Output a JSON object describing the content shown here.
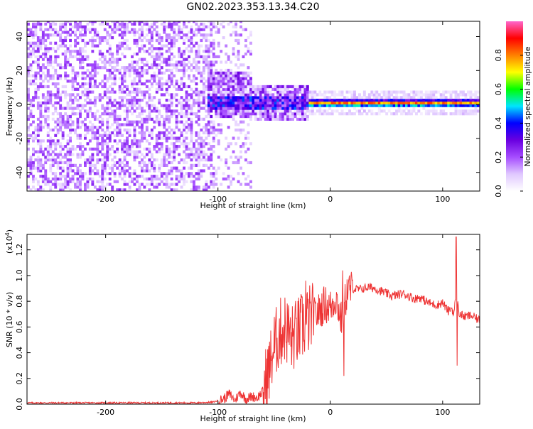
{
  "figure_title": "GN02.2023.353.13.34.C20",
  "chart_data": [
    {
      "type": "heatmap",
      "title": "GN02.2023.353.13.34.C20",
      "xlabel": "Height of straight line (km)",
      "ylabel": "Frequency (Hz)",
      "xlim": [
        -270,
        133
      ],
      "ylim": [
        -51,
        49
      ],
      "x_ticks": [
        -200,
        -100,
        0,
        100
      ],
      "y_ticks": [
        -40,
        -20,
        0,
        20,
        40
      ],
      "x_tick_labels": [
        "-200",
        "-100",
        "0",
        "100"
      ],
      "y_tick_labels": [
        "-40",
        "-20",
        "0",
        "20",
        "40"
      ],
      "colorbar": {
        "label": "Normalized spectral amplitude",
        "range": [
          0,
          1
        ],
        "ticks": [
          0,
          0.2,
          0.4,
          0.6,
          0.8
        ],
        "tick_labels": [
          "0.0",
          "0.2",
          "0.4",
          "0.6",
          "0.8"
        ],
        "colormap": [
          "#ffffff",
          "#e0c8ff",
          "#a64dff",
          "#6a00e0",
          "#0000ff",
          "#00e5ff",
          "#00ff00",
          "#ffff00",
          "#ff8000",
          "#ff0000",
          "#ff66cc"
        ]
      },
      "regions": [
        {
          "x_range": [
            -270,
            -105
          ],
          "description_level": "low noise",
          "amplitude": 0.12
        },
        {
          "x_range": [
            -105,
            -70
          ],
          "description_level": "sparse noise with stripes",
          "amplitude": 0.1
        },
        {
          "x_range": [
            -110,
            -20
          ],
          "description_level": "broadband onset",
          "amplitude": 0.3,
          "freq_halfwidth": 10
        },
        {
          "x_range": [
            -20,
            133
          ],
          "description_level": "narrow band near 0 Hz",
          "amplitude": 0.85,
          "freq_halfwidth": 3
        }
      ]
    },
    {
      "type": "line",
      "xlabel": "Height of straight line (km)",
      "ylabel": "SNR (10 * v/v)",
      "y_scale_label": "(x10",
      "y_scale_exponent": "4",
      "y_scale_close": ")",
      "xlim": [
        -270,
        133
      ],
      "ylim": [
        0,
        1.32
      ],
      "x_ticks": [
        -200,
        -100,
        0,
        100
      ],
      "y_ticks": [
        0,
        0.2,
        0.4,
        0.6,
        0.8,
        1.0,
        1.2
      ],
      "x_tick_labels": [
        "-200",
        "-100",
        "0",
        "100"
      ],
      "y_tick_labels": [
        "0.0",
        "0.2",
        "0.4",
        "0.6",
        "0.8",
        "1.0",
        "1.2"
      ],
      "line_color": "#ee3333",
      "series": [
        {
          "x": [
            -270,
            -240,
            -200,
            -160,
            -120,
            -105,
            -95,
            -90,
            -85,
            -80,
            -75,
            -70,
            -65,
            -60,
            -55,
            -50,
            -45,
            -40,
            -35,
            -30,
            -25,
            -20,
            -15,
            -10,
            -5,
            0,
            5,
            10,
            15,
            20,
            25,
            30,
            35,
            40,
            45,
            50,
            55,
            60,
            65,
            70,
            75,
            80,
            85,
            90,
            95,
            100,
            105,
            108,
            110,
            112,
            115,
            120,
            125,
            133
          ],
          "y": [
            0.01,
            0.01,
            0.01,
            0.01,
            0.01,
            0.015,
            0.04,
            0.08,
            0.03,
            0.09,
            0.04,
            0.06,
            0.05,
            0.1,
            0.25,
            0.45,
            0.55,
            0.6,
            0.5,
            0.55,
            0.6,
            0.65,
            0.68,
            0.72,
            0.78,
            0.75,
            0.83,
            0.65,
            0.88,
            0.9,
            0.89,
            0.9,
            0.91,
            0.9,
            0.88,
            0.86,
            0.84,
            0.85,
            0.86,
            0.84,
            0.82,
            0.83,
            0.8,
            0.78,
            0.77,
            0.79,
            0.72,
            0.75,
            0.7,
            0.85,
            0.7,
            0.68,
            0.69,
            0.65
          ],
          "spikes": [
            {
              "x": -37,
              "y": 0.73
            },
            {
              "x": -22,
              "y": 0.96
            },
            {
              "x": 11,
              "y": 1.04
            },
            {
              "x": 12,
              "y": 0.22
            },
            {
              "x": 112,
              "y": 1.3
            },
            {
              "x": 113,
              "y": 0.3
            }
          ]
        }
      ]
    }
  ]
}
